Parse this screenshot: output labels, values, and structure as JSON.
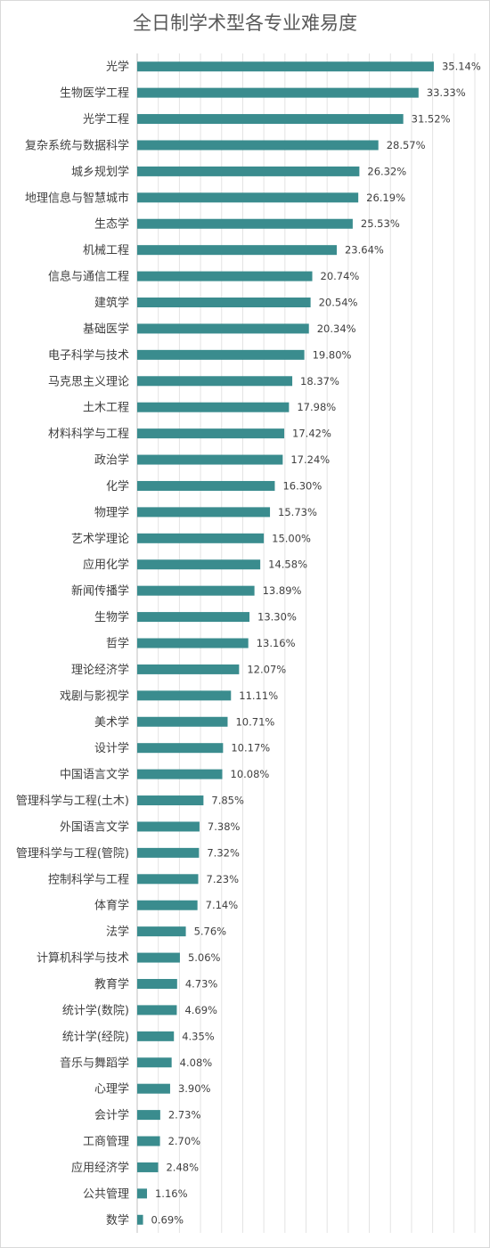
{
  "chart_data": {
    "type": "bar",
    "orientation": "horizontal",
    "title": "全日制学术型各专业难易度",
    "categories": [
      "光学",
      "生物医学工程",
      "光学工程",
      "复杂系统与数据科学",
      "城乡规划学",
      "地理信息与智慧城市",
      "生态学",
      "机械工程",
      "信息与通信工程",
      "建筑学",
      "基础医学",
      "电子科学与技术",
      "马克思主义理论",
      "土木工程",
      "材料科学与工程",
      "政治学",
      "化学",
      "物理学",
      "艺术学理论",
      "应用化学",
      "新闻传播学",
      "生物学",
      "哲学",
      "理论经济学",
      "戏剧与影视学",
      "美术学",
      "设计学",
      "中国语言文学",
      "管理科学与工程(土木)",
      "外国语言文学",
      "管理科学与工程(管院)",
      "控制科学与工程",
      "体育学",
      "法学",
      "计算机科学与技术",
      "教育学",
      "统计学(数院)",
      "统计学(经院)",
      "音乐与舞蹈学",
      "心理学",
      "会计学",
      "工商管理",
      "应用经济学",
      "公共管理",
      "数学"
    ],
    "values": [
      35.14,
      33.33,
      31.52,
      28.57,
      26.32,
      26.19,
      25.53,
      23.64,
      20.74,
      20.54,
      20.34,
      19.8,
      18.37,
      17.98,
      17.42,
      17.24,
      16.3,
      15.73,
      15.0,
      14.58,
      13.89,
      13.3,
      13.16,
      12.07,
      11.11,
      10.71,
      10.17,
      10.08,
      7.85,
      7.38,
      7.32,
      7.23,
      7.14,
      5.76,
      5.06,
      4.73,
      4.69,
      4.35,
      4.08,
      3.9,
      2.73,
      2.7,
      2.48,
      1.16,
      0.69
    ],
    "value_labels": [
      "35.14%",
      "33.33%",
      "31.52%",
      "28.57%",
      "26.32%",
      "26.19%",
      "25.53%",
      "23.64%",
      "20.74%",
      "20.54%",
      "20.34%",
      "19.80%",
      "18.37%",
      "17.98%",
      "17.42%",
      "17.24%",
      "16.30%",
      "15.73%",
      "15.00%",
      "14.58%",
      "13.89%",
      "13.30%",
      "13.16%",
      "12.07%",
      "11.11%",
      "10.71%",
      "10.17%",
      "10.08%",
      "7.85%",
      "7.38%",
      "7.32%",
      "7.23%",
      "7.14%",
      "5.76%",
      "5.06%",
      "4.73%",
      "4.69%",
      "4.35%",
      "4.08%",
      "3.90%",
      "2.73%",
      "2.70%",
      "2.48%",
      "1.16%",
      "0.69%"
    ],
    "xlim": [
      0,
      40
    ],
    "grid": true,
    "legend": "none",
    "bar_color": "#3a8c8e",
    "grid_color": "#e3e3e3"
  }
}
